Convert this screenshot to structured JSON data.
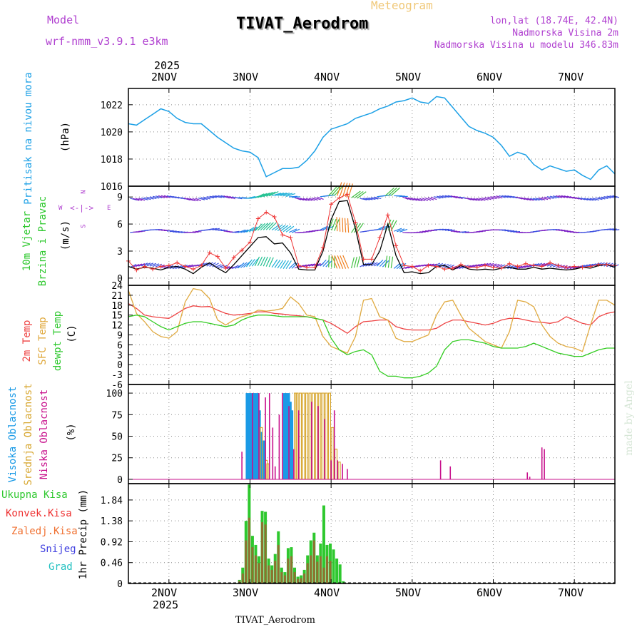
{
  "header": {
    "model_label": "Model",
    "model_name": "wrf-nmm_v3.9.1 e3km",
    "title": "TIVAT_Aerodrom",
    "subtitle": "Meteogram",
    "coords": "lon,lat (18.74E, 42.4N)",
    "height": "Nadmorska Visina 2m",
    "model_height": "Nadmorska Visina u modelu 346.83m",
    "watermark": "made by Angel",
    "footer": "TIVAT_Aerodrom"
  },
  "colors": {
    "pressure": "#1ca0e6",
    "wind_label": "#2ec82e",
    "temp2m": "#ee4444",
    "sfc": "#e0aa40",
    "dew": "#33cc22",
    "high_cloud": "#1a9ae6",
    "mid_cloud": "#d7a62e",
    "low_cloud": "#c8108c",
    "total_precip": "#2ec82e",
    "conv_precip": "#ee3333",
    "frozen": "#f07030",
    "snow": "#4040e0",
    "hail": "#20c0c0",
    "header_purple": "#b040d0",
    "grid": "#999999"
  },
  "axes": {
    "top_year": "2025",
    "top_days": [
      "2NOV",
      "3NOV",
      "4NOV",
      "5NOV",
      "6NOV",
      "7NOV"
    ],
    "bottom_days": [
      "2NOV",
      "3NOV",
      "4NOV",
      "5NOV",
      "6NOV",
      "7NOV"
    ],
    "bottom_year": "2025",
    "x_start_day": 1.5,
    "x_end_day": 7.5
  },
  "chart_data": [
    {
      "type": "line",
      "name": "pressure",
      "label_lines": [
        "Pritisak na nivou mora"
      ],
      "units": "(hPa)",
      "ylim": [
        1016,
        1023.2
      ],
      "yticks": [
        1016,
        1018,
        1020,
        1022
      ],
      "x": [
        1.5,
        1.6,
        1.7,
        1.8,
        1.9,
        2.0,
        2.1,
        2.2,
        2.3,
        2.4,
        2.5,
        2.6,
        2.7,
        2.8,
        2.9,
        3.0,
        3.1,
        3.2,
        3.3,
        3.4,
        3.5,
        3.6,
        3.7,
        3.8,
        3.9,
        4.0,
        4.1,
        4.2,
        4.3,
        4.4,
        4.5,
        4.6,
        4.7,
        4.8,
        4.9,
        5.0,
        5.1,
        5.2,
        5.3,
        5.4,
        5.5,
        5.6,
        5.7,
        5.8,
        5.9,
        6.0,
        6.1,
        6.2,
        6.3,
        6.4,
        6.5,
        6.6,
        6.7,
        6.8,
        6.9,
        7.0,
        7.1,
        7.2,
        7.3,
        7.4,
        7.5
      ],
      "values": [
        1020.6,
        1020.5,
        1020.9,
        1021.3,
        1021.7,
        1021.5,
        1021.0,
        1020.7,
        1020.6,
        1020.6,
        1020.1,
        1019.6,
        1019.2,
        1018.8,
        1018.6,
        1018.5,
        1018.1,
        1016.7,
        1017.0,
        1017.3,
        1017.3,
        1017.4,
        1017.9,
        1018.6,
        1019.6,
        1020.2,
        1020.4,
        1020.6,
        1021.0,
        1021.2,
        1021.4,
        1021.7,
        1021.9,
        1022.2,
        1022.3,
        1022.5,
        1022.2,
        1022.1,
        1022.6,
        1022.5,
        1021.8,
        1021.1,
        1020.4,
        1020.1,
        1019.9,
        1019.6,
        1019.0,
        1018.2,
        1018.5,
        1018.3,
        1017.6,
        1017.2,
        1017.5,
        1017.3,
        1017.1,
        1017.2,
        1016.8,
        1016.5,
        1017.2,
        1017.5,
        1016.9
      ]
    },
    {
      "type": "line",
      "name": "wind",
      "label_lines": [
        "10m Vjetar",
        "Brzina i Pravac"
      ],
      "units": "(m/s)",
      "compass": [
        "N",
        "W",
        "E",
        "S"
      ],
      "ylim": [
        -0.8,
        10.2
      ],
      "yticks": [
        0,
        3,
        6,
        9
      ],
      "x": [
        1.5,
        1.6,
        1.7,
        1.8,
        1.9,
        2.0,
        2.1,
        2.2,
        2.3,
        2.4,
        2.5,
        2.6,
        2.7,
        2.8,
        2.9,
        3.0,
        3.1,
        3.2,
        3.3,
        3.4,
        3.5,
        3.6,
        3.7,
        3.8,
        3.9,
        4.0,
        4.1,
        4.2,
        4.3,
        4.4,
        4.5,
        4.6,
        4.7,
        4.8,
        4.9,
        5.0,
        5.1,
        5.2,
        5.3,
        5.4,
        5.5,
        5.6,
        5.7,
        5.8,
        5.9,
        6.0,
        6.1,
        6.2,
        6.3,
        6.4,
        6.5,
        6.6,
        6.7,
        6.8,
        6.9,
        7.0,
        7.1,
        7.2,
        7.3,
        7.4,
        7.5
      ],
      "series": [
        {
          "name": "speed",
          "values": [
            1.3,
            1.0,
            1.2,
            1.1,
            0.9,
            1.2,
            1.3,
            1.0,
            0.5,
            1.2,
            1.7,
            1.1,
            0.6,
            1.5,
            2.5,
            3.5,
            4.5,
            4.6,
            3.8,
            3.9,
            2.8,
            1.0,
            0.9,
            0.9,
            3.0,
            6.5,
            8.5,
            8.6,
            5.5,
            1.5,
            1.5,
            3.0,
            6.0,
            2.5,
            0.6,
            0.7,
            0.5,
            0.6,
            1.3,
            1.4,
            0.9,
            1.4,
            1.0,
            0.9,
            1.0,
            0.9,
            1.1,
            1.2,
            1.0,
            1.0,
            1.2,
            1.0,
            1.1,
            1.0,
            0.9,
            1.0,
            1.2,
            1.1,
            1.4,
            1.5,
            1.2
          ]
        },
        {
          "name": "gust",
          "values": [
            1.9,
            0.9,
            1.3,
            1.0,
            1.3,
            1.4,
            1.7,
            1.3,
            1.0,
            1.4,
            2.8,
            2.4,
            1.1,
            2.3,
            3.1,
            4.0,
            6.6,
            7.3,
            6.8,
            4.8,
            4.5,
            1.4,
            1.2,
            1.2,
            3.4,
            8.2,
            8.9,
            9.3,
            6.2,
            2.1,
            2.1,
            4.5,
            7.0,
            3.6,
            1.4,
            1.3,
            0.8,
            1.4,
            1.3,
            1.0,
            1.1,
            1.5,
            1.2,
            1.2,
            1.4,
            1.2,
            1.1,
            1.6,
            1.3,
            1.6,
            1.4,
            1.3,
            1.7,
            1.4,
            1.2,
            1.3,
            1.2,
            1.3,
            1.5,
            1.5,
            1.4
          ]
        }
      ]
    },
    {
      "type": "line",
      "name": "temperature",
      "label_lines": [
        "2m Temp",
        "SFC Temp",
        "dewpt Temp"
      ],
      "units": "(C)",
      "ylim": [
        -6,
        24
      ],
      "yticks": [
        -6,
        -3,
        0,
        3,
        6,
        9,
        12,
        15,
        18,
        21,
        24
      ],
      "x": [
        1.5,
        1.6,
        1.7,
        1.8,
        1.9,
        2.0,
        2.1,
        2.2,
        2.3,
        2.4,
        2.5,
        2.6,
        2.7,
        2.8,
        2.9,
        3.0,
        3.1,
        3.2,
        3.3,
        3.4,
        3.5,
        3.6,
        3.7,
        3.8,
        3.9,
        4.0,
        4.1,
        4.2,
        4.3,
        4.4,
        4.5,
        4.6,
        4.7,
        4.8,
        4.9,
        5.0,
        5.1,
        5.2,
        5.3,
        5.4,
        5.5,
        5.6,
        5.7,
        5.8,
        5.9,
        6.0,
        6.1,
        6.2,
        6.3,
        6.4,
        6.5,
        6.6,
        6.7,
        6.8,
        6.9,
        7.0,
        7.1,
        7.2,
        7.3,
        7.4,
        7.5
      ],
      "series": [
        {
          "name": "2m Temp",
          "values": [
            18.5,
            17.0,
            15.0,
            14.5,
            14.2,
            14.0,
            15.5,
            17.0,
            17.8,
            17.5,
            17.6,
            16.5,
            15.5,
            15.0,
            15.2,
            15.5,
            16.0,
            16.0,
            15.5,
            15.3,
            15.0,
            14.8,
            14.5,
            14.0,
            13.5,
            12.5,
            11.0,
            9.5,
            11.5,
            13.0,
            13.2,
            13.5,
            13.5,
            11.5,
            10.8,
            10.5,
            10.5,
            10.5,
            11.0,
            12.5,
            13.5,
            13.5,
            13.0,
            12.5,
            12.0,
            12.5,
            13.5,
            14.0,
            14.0,
            13.5,
            13.0,
            12.8,
            12.5,
            13.0,
            14.5,
            13.5,
            12.5,
            12.0,
            14.5,
            15.5,
            16.0
          ]
        },
        {
          "name": "SFC Temp",
          "values": [
            22.5,
            15.5,
            13.0,
            10.0,
            8.5,
            8.0,
            10.0,
            19.0,
            23.0,
            22.5,
            20.0,
            13.5,
            12.0,
            13.5,
            14.5,
            15.2,
            16.5,
            16.2,
            16.5,
            17.0,
            20.5,
            18.5,
            15.0,
            14.5,
            8.5,
            5.5,
            4.5,
            3.5,
            8.5,
            19.5,
            20.0,
            14.5,
            13.5,
            8.0,
            7.0,
            7.0,
            8.0,
            9.0,
            15.0,
            19.0,
            19.5,
            15.0,
            11.0,
            9.0,
            7.0,
            6.0,
            5.0,
            10.0,
            19.5,
            19.0,
            17.5,
            12.0,
            8.5,
            6.5,
            5.5,
            5.0,
            4.0,
            12.0,
            19.5,
            19.5,
            18.0
          ]
        },
        {
          "name": "dewpt Temp",
          "values": [
            14.5,
            15.0,
            14.5,
            13.0,
            11.5,
            10.5,
            11.5,
            12.5,
            13.0,
            13.0,
            12.5,
            12.0,
            11.5,
            12.0,
            13.5,
            14.5,
            15.0,
            15.0,
            14.8,
            14.5,
            14.5,
            14.5,
            14.5,
            14.0,
            13.5,
            8.0,
            4.5,
            3.0,
            4.0,
            4.5,
            3.0,
            -2.0,
            -3.5,
            -3.5,
            -4.0,
            -4.0,
            -3.5,
            -2.5,
            -0.5,
            4.5,
            7.0,
            7.5,
            7.5,
            7.0,
            6.5,
            5.5,
            5.0,
            5.0,
            5.0,
            5.5,
            6.5,
            5.5,
            4.5,
            3.5,
            3.0,
            2.5,
            2.5,
            3.5,
            4.5,
            5.0,
            5.0
          ]
        }
      ]
    },
    {
      "type": "bar",
      "name": "cloud_cover",
      "label_lines": [
        "Visoka Oblacnost",
        "Srednja Oblacnost",
        "Niska Oblacnost"
      ],
      "units": "(%)",
      "ylim": [
        -5,
        110
      ],
      "yticks": [
        0,
        25,
        50,
        75,
        100
      ],
      "series": [
        {
          "name": "Visoka Oblacnost",
          "x": [
            2.96,
            2.98,
            3.0,
            3.02,
            3.04,
            3.06,
            3.08,
            3.1,
            3.12,
            3.14,
            3.16,
            3.18,
            3.42,
            3.44,
            3.46,
            3.48,
            3.5,
            3.52
          ],
          "values": [
            100,
            100,
            100,
            100,
            100,
            100,
            100,
            100,
            80,
            55,
            45,
            45,
            100,
            100,
            100,
            100,
            90,
            80
          ]
        },
        {
          "name": "Srednja Oblacnost",
          "x": [
            3.14,
            3.2,
            3.22,
            3.56,
            3.58,
            3.62,
            3.66,
            3.7,
            3.74,
            3.78,
            3.82,
            3.86,
            3.9,
            3.94,
            3.98,
            4.02,
            4.06,
            4.1
          ],
          "values": [
            60,
            22,
            18,
            100,
            100,
            100,
            100,
            100,
            100,
            100,
            100,
            100,
            100,
            100,
            100,
            60,
            35,
            20
          ]
        },
        {
          "name": "Niska Oblacnost",
          "x": [
            2.9,
            3.03,
            3.11,
            3.19,
            3.24,
            3.28,
            3.31,
            3.36,
            3.4,
            3.48,
            3.54,
            3.6,
            3.76,
            3.84,
            3.92,
            4.0,
            4.04,
            4.08,
            4.14,
            4.2,
            5.35,
            5.47,
            6.42,
            6.45,
            6.6,
            6.63
          ],
          "values": [
            32,
            100,
            100,
            95,
            100,
            60,
            15,
            75,
            100,
            85,
            35,
            80,
            90,
            85,
            70,
            22,
            80,
            22,
            18,
            12,
            22,
            15,
            8,
            3,
            37,
            35
          ]
        }
      ]
    },
    {
      "type": "bar",
      "name": "precipitation",
      "label_lines": [
        "Ukupna Kisa",
        "Konvek.Kisa",
        "Zaledj.Kisa",
        "Snijeg",
        "Grad"
      ],
      "ylabel": "1hr Precip (mm)",
      "ylim": [
        0,
        2.2
      ],
      "yticks": [
        0,
        0.46,
        0.92,
        1.38,
        1.84
      ],
      "x": [
        2.87,
        2.91,
        2.95,
        2.99,
        3.03,
        3.07,
        3.11,
        3.15,
        3.19,
        3.23,
        3.27,
        3.31,
        3.35,
        3.39,
        3.43,
        3.47,
        3.51,
        3.55,
        3.59,
        3.63,
        3.67,
        3.71,
        3.75,
        3.79,
        3.83,
        3.87,
        3.91,
        3.95,
        3.99,
        4.03,
        4.07,
        4.11,
        4.15
      ],
      "series": [
        {
          "name": "Ukupna Kisa",
          "values": [
            0.08,
            0.35,
            1.38,
            2.18,
            1.05,
            0.85,
            0.6,
            1.6,
            1.58,
            0.55,
            0.4,
            0.65,
            1.15,
            0.35,
            0.25,
            0.78,
            0.8,
            0.35,
            0.15,
            0.18,
            0.3,
            0.62,
            0.95,
            1.12,
            0.62,
            0.88,
            1.72,
            0.85,
            0.88,
            0.75,
            0.55,
            0.42,
            0.05
          ]
        },
        {
          "name": "Konvek.Kisa",
          "values": [
            0.06,
            0.22,
            0.95,
            1.45,
            0.8,
            0.62,
            0.45,
            1.35,
            1.3,
            0.4,
            0.3,
            0.5,
            0.85,
            0.25,
            0.18,
            0.55,
            0.6,
            0.25,
            0.1,
            0.12,
            0.22,
            0.45,
            0.62,
            0.95,
            0.48,
            0.6,
            0.35,
            0.6,
            0.5,
            0.0,
            0.0,
            0.0,
            0.0
          ]
        }
      ]
    }
  ]
}
